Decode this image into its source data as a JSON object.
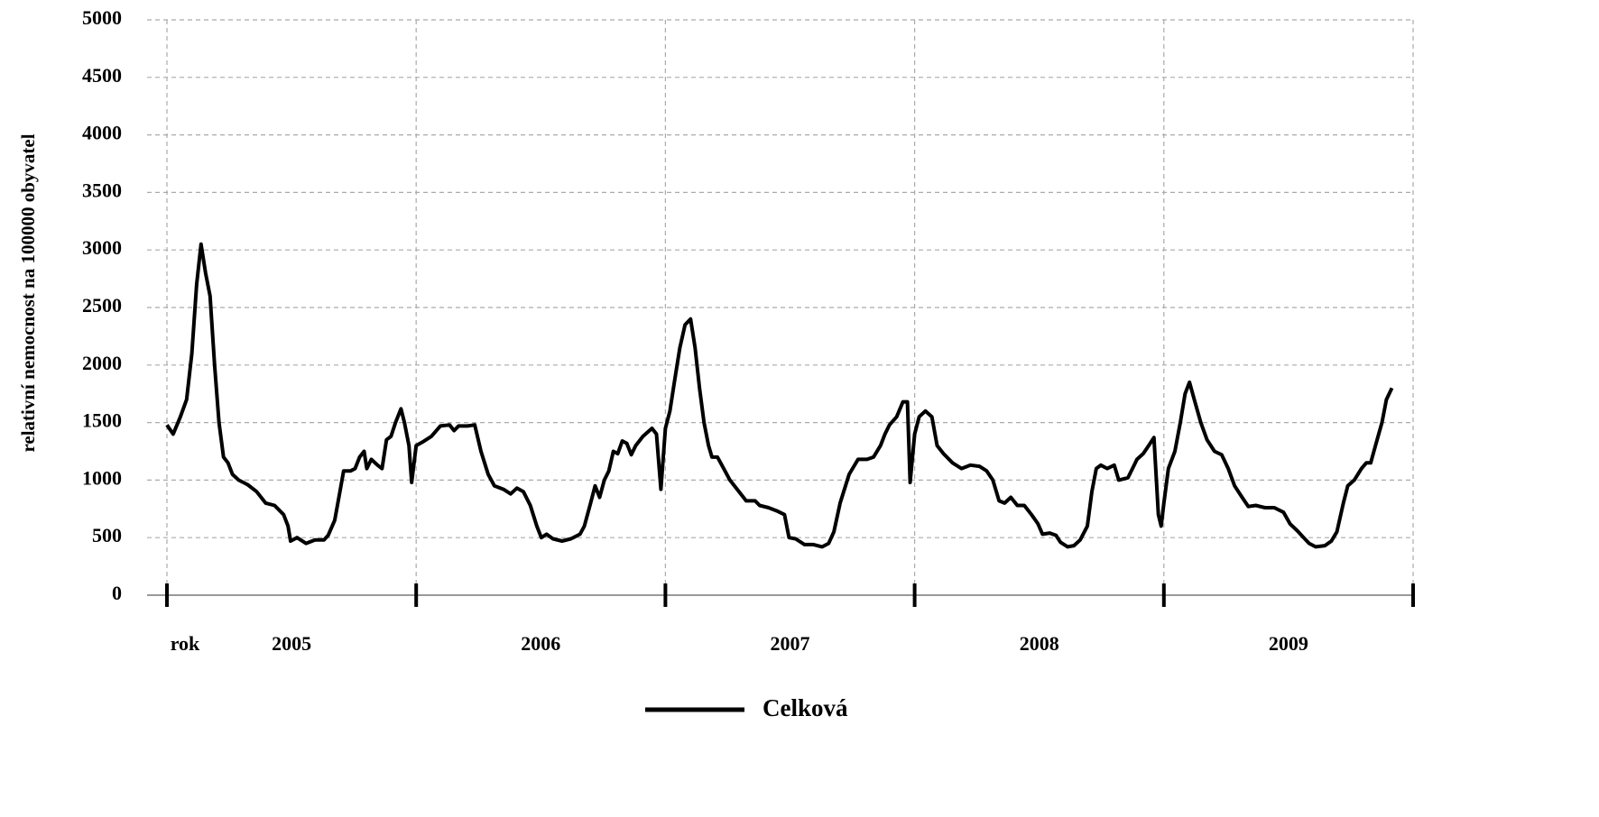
{
  "chart_data": {
    "type": "line",
    "ylabel": "relativní nemocnost na 100000 obyvatel",
    "xlabel": "rok",
    "year_labels": [
      {
        "value": 2005.5,
        "label": "2005"
      },
      {
        "value": 2006.5,
        "label": "2006"
      },
      {
        "value": 2007.5,
        "label": "2007"
      },
      {
        "value": 2008.5,
        "label": "2008"
      },
      {
        "value": 2009.5,
        "label": "2009"
      }
    ],
    "xlim": [
      2005,
      2010
    ],
    "xticks": [
      2005,
      2006,
      2007,
      2008,
      2009,
      2010
    ],
    "ylim": [
      0,
      5000
    ],
    "yticks": [
      0,
      500,
      1000,
      1500,
      2000,
      2500,
      3000,
      3500,
      4000,
      4500,
      5000
    ],
    "grid": true,
    "series": [
      {
        "name": "Celková",
        "color": "#000000",
        "x": [
          2005.0,
          2005.025,
          2005.054,
          2005.079,
          2005.1,
          2005.119,
          2005.137,
          2005.155,
          2005.173,
          2005.191,
          2005.209,
          2005.227,
          2005.245,
          2005.263,
          2005.288,
          2005.324,
          2005.36,
          2005.396,
          2005.432,
          2005.468,
          2005.486,
          2005.496,
          2005.522,
          2005.558,
          2005.594,
          2005.63,
          2005.647,
          2005.673,
          2005.694,
          2005.709,
          2005.737,
          2005.755,
          2005.773,
          2005.791,
          2005.802,
          2005.82,
          2005.845,
          2005.863,
          2005.881,
          2005.899,
          2005.917,
          2005.939,
          2005.953,
          2005.971,
          2005.982,
          2006.0,
          2006.025,
          2006.061,
          2006.097,
          2006.134,
          2006.152,
          2006.17,
          2006.206,
          2006.235,
          2006.26,
          2006.289,
          2006.314,
          2006.35,
          2006.379,
          2006.404,
          2006.43,
          2006.458,
          2006.484,
          2006.502,
          2006.523,
          2006.549,
          2006.585,
          2006.621,
          2006.657,
          2006.675,
          2006.7,
          2006.718,
          2006.736,
          2006.755,
          2006.773,
          2006.791,
          2006.809,
          2006.827,
          2006.845,
          2006.863,
          2006.881,
          2006.91,
          2006.946,
          2006.964,
          2006.982,
          2007.0,
          2007.018,
          2007.036,
          2007.058,
          2007.079,
          2007.101,
          2007.119,
          2007.137,
          2007.155,
          2007.173,
          2007.187,
          2007.209,
          2007.234,
          2007.259,
          2007.288,
          2007.324,
          2007.36,
          2007.378,
          2007.414,
          2007.45,
          2007.478,
          2007.496,
          2007.522,
          2007.558,
          2007.594,
          2007.629,
          2007.655,
          2007.676,
          2007.701,
          2007.737,
          2007.773,
          2007.809,
          2007.835,
          2007.863,
          2007.881,
          2007.899,
          2007.928,
          2007.953,
          2007.971,
          2007.982,
          2008.0,
          2008.018,
          2008.043,
          2008.069,
          2008.09,
          2008.116,
          2008.152,
          2008.188,
          2008.224,
          2008.26,
          2008.289,
          2008.314,
          2008.339,
          2008.361,
          2008.386,
          2008.412,
          2008.44,
          2008.469,
          2008.495,
          2008.513,
          2008.542,
          2008.567,
          2008.585,
          2008.614,
          2008.639,
          2008.664,
          2008.693,
          2008.711,
          2008.729,
          2008.747,
          2008.773,
          2008.801,
          2008.819,
          2008.856,
          2008.874,
          2008.892,
          2008.917,
          2008.939,
          2008.96,
          2008.978,
          2008.989,
          2009.0,
          2009.018,
          2009.044,
          2009.066,
          2009.085,
          2009.103,
          2009.122,
          2009.148,
          2009.173,
          2009.203,
          2009.232,
          2009.258,
          2009.284,
          2009.314,
          2009.339,
          2009.369,
          2009.406,
          2009.443,
          2009.48,
          2009.506,
          2009.535,
          2009.561,
          2009.583,
          2009.609,
          2009.646,
          2009.672,
          2009.694,
          2009.72,
          2009.738,
          2009.764,
          2009.793,
          2009.812,
          2009.83,
          2009.849,
          2009.875,
          2009.893,
          2009.915
        ],
        "values": [
          1480,
          1400,
          1550,
          1700,
          2100,
          2700,
          3050,
          2800,
          2600,
          2000,
          1500,
          1200,
          1150,
          1050,
          1000,
          960,
          900,
          800,
          780,
          700,
          600,
          470,
          500,
          450,
          480,
          480,
          520,
          650,
          900,
          1080,
          1080,
          1100,
          1200,
          1250,
          1100,
          1180,
          1130,
          1100,
          1350,
          1380,
          1500,
          1620,
          1500,
          1300,
          980,
          1300,
          1330,
          1380,
          1470,
          1480,
          1430,
          1470,
          1470,
          1480,
          1250,
          1050,
          950,
          920,
          880,
          930,
          900,
          780,
          600,
          500,
          530,
          490,
          470,
          490,
          530,
          600,
          800,
          950,
          850,
          1000,
          1080,
          1250,
          1230,
          1340,
          1320,
          1220,
          1300,
          1380,
          1450,
          1400,
          920,
          1450,
          1600,
          1850,
          2150,
          2350,
          2400,
          2150,
          1800,
          1500,
          1300,
          1200,
          1200,
          1100,
          1000,
          920,
          820,
          820,
          780,
          760,
          730,
          700,
          500,
          490,
          440,
          440,
          420,
          450,
          550,
          800,
          1050,
          1180,
          1180,
          1200,
          1300,
          1400,
          1480,
          1550,
          1680,
          1680,
          980,
          1400,
          1550,
          1600,
          1550,
          1300,
          1230,
          1150,
          1100,
          1130,
          1120,
          1080,
          1000,
          820,
          800,
          850,
          780,
          780,
          700,
          620,
          530,
          540,
          520,
          460,
          420,
          430,
          480,
          600,
          900,
          1100,
          1130,
          1100,
          1130,
          1000,
          1020,
          1100,
          1180,
          1230,
          1300,
          1370,
          700,
          600,
          800,
          1100,
          1250,
          1500,
          1750,
          1850,
          1700,
          1500,
          1350,
          1250,
          1220,
          1100,
          950,
          850,
          770,
          780,
          760,
          760,
          720,
          620,
          560,
          500,
          450,
          420,
          430,
          470,
          550,
          800,
          950,
          1000,
          1100,
          1150,
          1150,
          1300,
          1500,
          1700,
          1800
        ]
      }
    ]
  }
}
